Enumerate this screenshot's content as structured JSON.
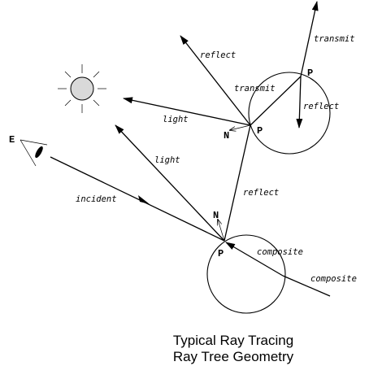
{
  "labels": {
    "eye": "E",
    "point": "P",
    "normal": "N",
    "incident": "incident",
    "light": "light",
    "reflect": "reflect",
    "transmit": "transmit",
    "composite": "composite"
  },
  "caption": {
    "line1": "Typical Ray Tracing",
    "line2": "Ray Tree Geometry"
  },
  "colors": {
    "stroke": "#000000",
    "light_fill": "#d9d9d9",
    "background": "#ffffff"
  },
  "icons": {
    "light_source": "sun-icon",
    "eye": "eye-icon"
  }
}
